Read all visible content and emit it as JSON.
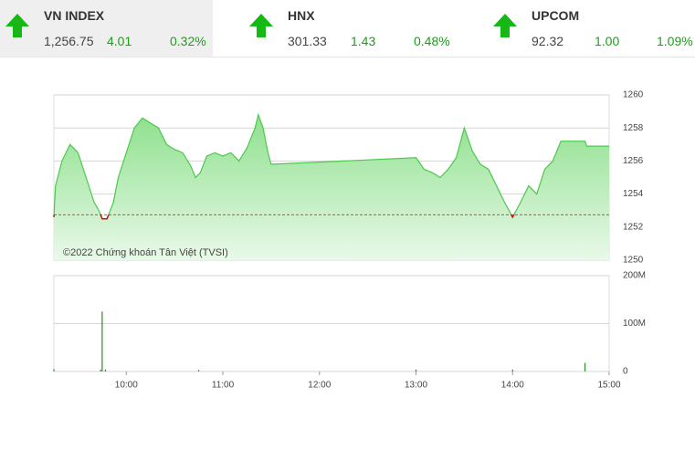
{
  "header": {
    "indices": [
      {
        "name": "VN INDEX",
        "value": "1,256.75",
        "change": "4.01",
        "percent": "0.32%"
      },
      {
        "name": "HNX",
        "value": "301.33",
        "change": "1.43",
        "percent": "0.48%"
      },
      {
        "name": "UPCOM",
        "value": "92.32",
        "change": "1.00",
        "percent": "1.09%"
      }
    ]
  },
  "chart_data": [
    {
      "type": "line",
      "annotation": "©2022 Chứng khoán Tân Việt (TVSI)",
      "color": "#4cc94c",
      "below_color": "#d01010",
      "reference": 1252.75,
      "x": [
        "09:15",
        "09:16",
        "09:20",
        "09:25",
        "09:30",
        "09:35",
        "09:40",
        "09:43",
        "09:45",
        "09:48",
        "09:52",
        "09:55",
        "10:00",
        "10:05",
        "10:10",
        "10:15",
        "10:20",
        "10:25",
        "10:30",
        "10:35",
        "10:40",
        "10:43",
        "10:46",
        "10:50",
        "10:55",
        "11:00",
        "11:05",
        "11:10",
        "11:15",
        "11:20",
        "11:22",
        "11:25",
        "11:28",
        "11:30",
        "13:00",
        "13:05",
        "13:10",
        "13:15",
        "13:20",
        "13:25",
        "13:30",
        "13:35",
        "13:40",
        "13:45",
        "13:50",
        "13:55",
        "14:00",
        "14:05",
        "14:10",
        "14:15",
        "14:20",
        "14:25",
        "14:30",
        "14:45",
        "14:46",
        "15:00"
      ],
      "values": [
        1252.6,
        1254.5,
        1256,
        1257,
        1256.5,
        1255,
        1253.5,
        1253,
        1252.5,
        1252.5,
        1253.5,
        1255,
        1256.5,
        1258,
        1258.6,
        1258.3,
        1258,
        1257,
        1256.7,
        1256.5,
        1255.7,
        1255,
        1255.3,
        1256.3,
        1256.5,
        1256.3,
        1256.5,
        1256,
        1256.8,
        1258,
        1258.8,
        1258,
        1256.5,
        1255.8,
        1256.2,
        1255.5,
        1255.3,
        1255,
        1255.5,
        1256.2,
        1258,
        1256.6,
        1255.8,
        1255.5,
        1254.5,
        1253.5,
        1252.6,
        1253.5,
        1254.5,
        1254,
        1255.5,
        1256,
        1257.2,
        1257.2,
        1256.9,
        1256.9
      ],
      "xlim": [
        "09:15",
        "15:00"
      ],
      "ylim": [
        1250,
        1260
      ],
      "yticks": [
        1250,
        1252,
        1254,
        1256,
        1258,
        1260
      ],
      "grid": true
    },
    {
      "type": "bar",
      "color": "#2a8a2a",
      "x": [
        "09:15",
        "09:44",
        "09:45",
        "09:47",
        "10:45",
        "13:00",
        "14:00",
        "14:45"
      ],
      "values": [
        5000000,
        4000000,
        125000000,
        4000000,
        3000000,
        4000000,
        4000000,
        18000000
      ],
      "xlim": [
        "09:15",
        "15:00"
      ],
      "ylim": [
        0,
        200000000
      ],
      "yticks": [
        0,
        {
          "value": 100000000,
          "label": "100M"
        },
        {
          "value": 200000000,
          "label": "200M"
        }
      ],
      "xticks": [
        "10:00",
        "11:00",
        "12:00",
        "13:00",
        "14:00",
        "15:00"
      ],
      "grid": true
    }
  ]
}
